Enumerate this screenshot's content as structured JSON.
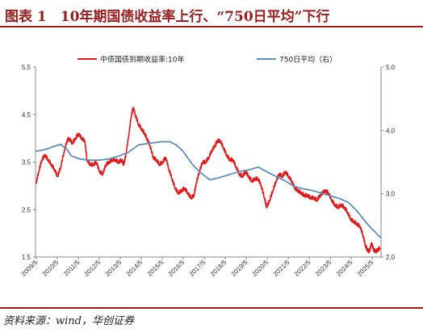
{
  "header": {
    "title": "图表 1　10年期国债收益率上行、“750日平均”下行"
  },
  "footer": {
    "source": "资料来源：wind，华创证券"
  },
  "colors": {
    "title": "#9b1c1c",
    "series_yield": "#e31a1c",
    "series_ma": "#5b8ec3"
  },
  "chart_data": {
    "type": "line",
    "legend_position": "top",
    "grid": false,
    "x_tick_labels": [
      "2009/5",
      "2010/5",
      "2011/5",
      "2012/5",
      "2013/5",
      "2014/5",
      "2015/5",
      "2016/5",
      "2017/5",
      "2018/5",
      "2019/5",
      "2020/5",
      "2021/5",
      "2022/5",
      "2023/5",
      "2024/5",
      "2025/5"
    ],
    "x_range": [
      2009.3,
      2025.75
    ],
    "y_left": {
      "ticks": [
        "1.5",
        "2.5",
        "3.5",
        "4.5",
        "5.5"
      ],
      "range": [
        1.5,
        5.5
      ]
    },
    "y_right": {
      "ticks": [
        "2.0",
        "3.0",
        "4.0",
        "5.0"
      ],
      "range": [
        2.0,
        5.0
      ]
    },
    "series": [
      {
        "name": "中债国债到期收益率:10年",
        "axis": "left",
        "x": [
          2009.33,
          2009.45,
          2009.6,
          2009.75,
          2009.9,
          2010.05,
          2010.2,
          2010.35,
          2010.5,
          2010.65,
          2010.8,
          2010.9,
          2011.05,
          2011.2,
          2011.35,
          2011.5,
          2011.65,
          2011.75,
          2011.9,
          2012.05,
          2012.2,
          2012.35,
          2012.5,
          2012.65,
          2012.8,
          2012.95,
          2013.1,
          2013.25,
          2013.4,
          2013.5,
          2013.6,
          2013.75,
          2013.85,
          2013.95,
          2014.05,
          2014.2,
          2014.35,
          2014.5,
          2014.6,
          2014.75,
          2014.9,
          2015.05,
          2015.2,
          2015.35,
          2015.5,
          2015.65,
          2015.8,
          2015.95,
          2016.1,
          2016.25,
          2016.4,
          2016.55,
          2016.7,
          2016.85,
          2016.95,
          2017.1,
          2017.25,
          2017.4,
          2017.55,
          2017.7,
          2017.85,
          2017.95,
          2018.1,
          2018.25,
          2018.4,
          2018.55,
          2018.7,
          2018.85,
          2019.0,
          2019.15,
          2019.3,
          2019.45,
          2019.6,
          2019.75,
          2019.9,
          2020.05,
          2020.2,
          2020.3,
          2020.45,
          2020.6,
          2020.75,
          2020.9,
          2021.05,
          2021.2,
          2021.35,
          2021.5,
          2021.65,
          2021.8,
          2021.95,
          2022.1,
          2022.25,
          2022.4,
          2022.55,
          2022.7,
          2022.85,
          2022.95,
          2023.1,
          2023.25,
          2023.4,
          2023.55,
          2023.7,
          2023.85,
          2024.0,
          2024.15,
          2024.3,
          2024.45,
          2024.6,
          2024.75,
          2024.9,
          2025.0,
          2025.1,
          2025.2,
          2025.3,
          2025.4,
          2025.5,
          2025.6,
          2025.7
        ],
        "y": [
          3.05,
          3.3,
          3.55,
          3.65,
          3.55,
          3.45,
          3.35,
          3.2,
          3.4,
          3.7,
          3.95,
          4.0,
          3.9,
          4.0,
          4.1,
          4.0,
          3.95,
          3.55,
          3.45,
          3.45,
          3.5,
          3.3,
          3.25,
          3.45,
          3.5,
          3.55,
          3.55,
          3.5,
          3.55,
          3.45,
          3.65,
          4.1,
          4.45,
          4.65,
          4.5,
          4.3,
          4.2,
          4.1,
          4.0,
          3.85,
          3.6,
          3.55,
          3.45,
          3.5,
          3.6,
          3.35,
          3.15,
          2.95,
          2.85,
          2.9,
          2.95,
          2.85,
          2.75,
          2.8,
          3.05,
          3.3,
          3.5,
          3.5,
          3.6,
          3.75,
          3.85,
          3.95,
          3.95,
          3.8,
          3.65,
          3.55,
          3.55,
          3.4,
          3.25,
          3.2,
          3.3,
          3.2,
          3.1,
          3.15,
          3.15,
          3.0,
          2.75,
          2.55,
          2.7,
          2.9,
          3.1,
          3.25,
          3.2,
          3.3,
          3.2,
          3.1,
          2.95,
          2.9,
          2.85,
          2.8,
          2.8,
          2.75,
          2.75,
          2.7,
          2.8,
          2.85,
          2.9,
          2.85,
          2.7,
          2.6,
          2.55,
          2.6,
          2.55,
          2.45,
          2.3,
          2.25,
          2.2,
          2.15,
          1.95,
          1.75,
          1.65,
          1.62,
          1.8,
          1.65,
          1.62,
          1.65,
          1.7
        ]
      },
      {
        "name": "750日平均（右）",
        "axis": "right",
        "x": [
          2009.33,
          2009.8,
          2010.2,
          2010.5,
          2010.8,
          2011.0,
          2011.4,
          2011.8,
          2012.3,
          2012.8,
          2013.3,
          2013.7,
          2014.2,
          2014.8,
          2015.3,
          2015.7,
          2016.0,
          2016.3,
          2016.8,
          2017.2,
          2017.6,
          2018.0,
          2018.5,
          2019.0,
          2019.5,
          2019.9,
          2020.3,
          2020.7,
          2021.2,
          2021.6,
          2022.0,
          2022.5,
          2023.0,
          2023.4,
          2023.8,
          2024.2,
          2024.6,
          2025.0,
          2025.3,
          2025.6,
          2025.75
        ],
        "y": [
          3.67,
          3.7,
          3.75,
          3.78,
          3.7,
          3.6,
          3.55,
          3.53,
          3.53,
          3.55,
          3.6,
          3.65,
          3.77,
          3.8,
          3.82,
          3.82,
          3.77,
          3.68,
          3.45,
          3.32,
          3.22,
          3.25,
          3.3,
          3.35,
          3.38,
          3.42,
          3.35,
          3.28,
          3.2,
          3.12,
          3.08,
          3.05,
          3.0,
          2.96,
          2.92,
          2.86,
          2.73,
          2.56,
          2.45,
          2.35,
          2.3
        ]
      }
    ]
  }
}
